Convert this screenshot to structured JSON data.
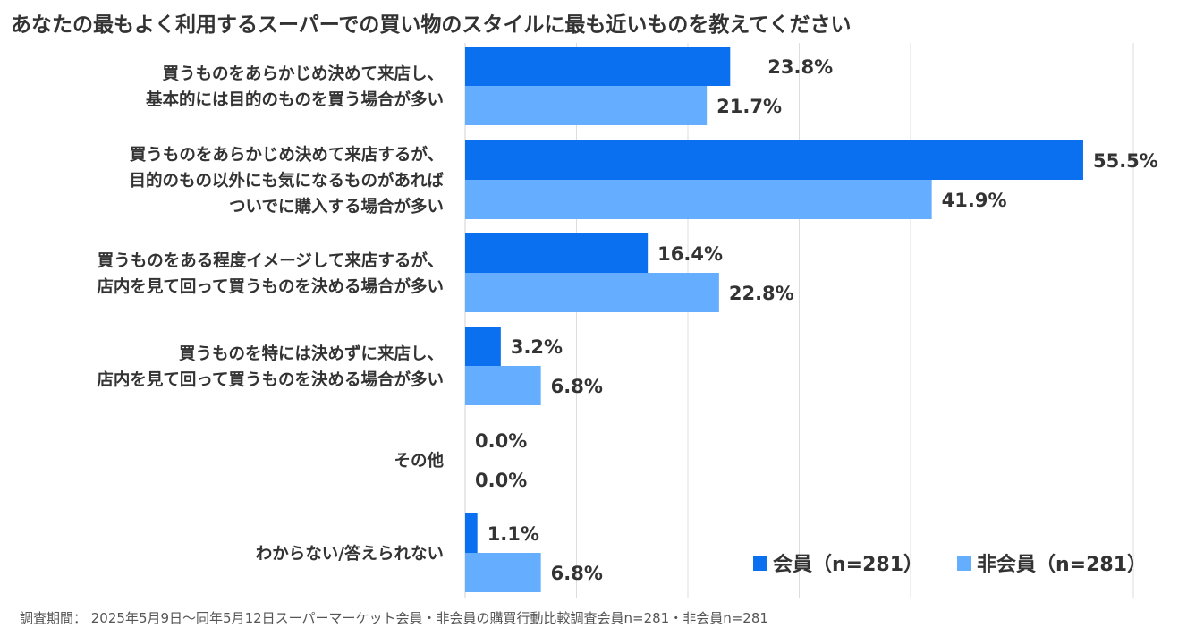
{
  "title": "あなたの最もよく利用するスーパーでの買い物のスタイルに最も近いものを教えてください",
  "footnote": "調査期間： 2025年5月9日〜同年5月12日スーパーマーケット会員・非会員の購買行動比較調査会員n=281・非会員n=281",
  "chart_data": {
    "type": "bar",
    "orientation": "horizontal",
    "title": "あなたの最もよく利用するスーパーでの買い物のスタイルに最も近いものを教えてください",
    "xlim": [
      0,
      60
    ],
    "grid": true,
    "legend_position": "bottom-right",
    "value_suffix": "%",
    "categories": [
      [
        "買うものをあらかじめ決めて来店し、",
        "基本的には目的のものを買う場合が多い"
      ],
      [
        "買うものをあらかじめ決めて来店するが、",
        "目的のもの以外にも気になるものがあれば",
        "ついでに購入する場合が多い"
      ],
      [
        "買うものをある程度イメージして来店するが、",
        "店内を見て回って買うものを決める場合が多い"
      ],
      [
        "買うものを特には決めずに来店し、",
        "店内を見て回って買うものを決める場合が多い"
      ],
      [
        "その他"
      ],
      [
        "わからない/答えられない"
      ]
    ],
    "series": [
      {
        "name": "会員（n=281）",
        "color": "#0a70f0",
        "values": [
          23.8,
          55.5,
          16.4,
          3.2,
          0.0,
          1.1
        ]
      },
      {
        "name": "非会員（n=281）",
        "color": "#64adff",
        "values": [
          21.7,
          41.9,
          22.8,
          6.8,
          0.0,
          6.8
        ]
      }
    ]
  }
}
